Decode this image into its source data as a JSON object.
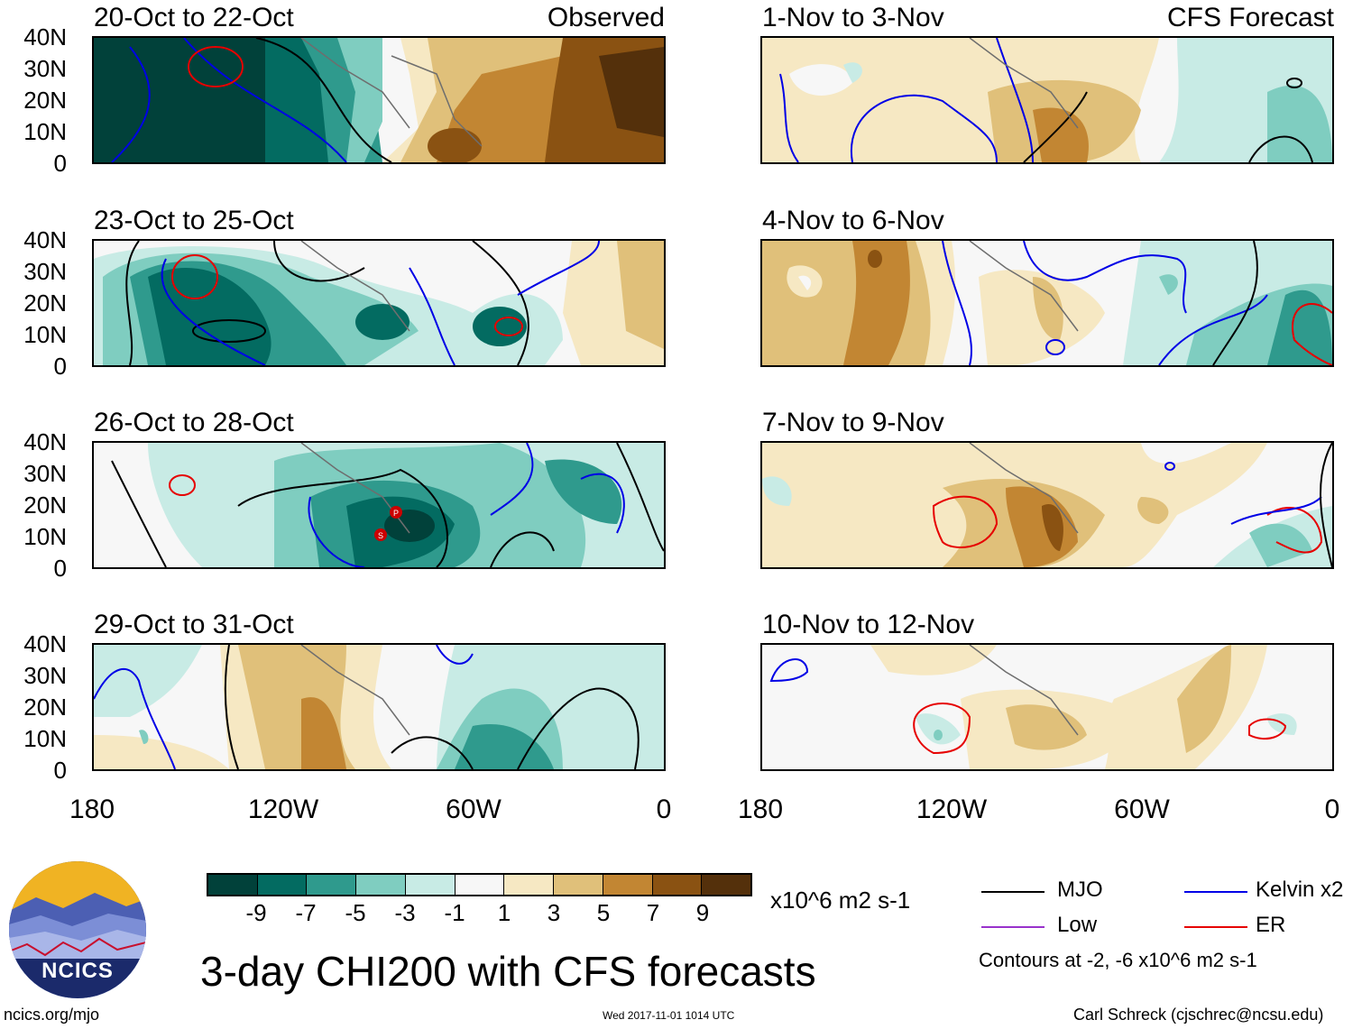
{
  "panels": [
    {
      "title": "20-Oct to 22-Oct",
      "tag": "Observed"
    },
    {
      "title": "23-Oct to 25-Oct",
      "tag": ""
    },
    {
      "title": "26-Oct to 28-Oct",
      "tag": ""
    },
    {
      "title": "29-Oct to 31-Oct",
      "tag": ""
    },
    {
      "title": "1-Nov to 3-Nov",
      "tag": "CFS Forecast"
    },
    {
      "title": "4-Nov to 6-Nov",
      "tag": ""
    },
    {
      "title": "7-Nov to 9-Nov",
      "tag": ""
    },
    {
      "title": "10-Nov to 12-Nov",
      "tag": ""
    }
  ],
  "axes": {
    "y_ticks": [
      "40N",
      "30N",
      "20N",
      "10N",
      "0"
    ],
    "x_ticks": [
      "180",
      "120W",
      "60W",
      "0"
    ]
  },
  "colorbar": {
    "labels": [
      "-9",
      "-7",
      "-5",
      "-3",
      "-1",
      "1",
      "3",
      "5",
      "7",
      "9"
    ],
    "units": "x10^6 m2 s-1",
    "colors": [
      "#01413a",
      "#036b61",
      "#2f9a8d",
      "#7fcdc0",
      "#c8ebe5",
      "#f7f7f7",
      "#f6e8c3",
      "#e0c07a",
      "#c28633",
      "#8a5212",
      "#54300b"
    ]
  },
  "legend": {
    "items": [
      {
        "label": "MJO",
        "color": "#000000"
      },
      {
        "label": "Kelvin x2",
        "color": "#0000e6"
      },
      {
        "label": "Low",
        "color": "#9932cc"
      },
      {
        "label": "ER",
        "color": "#e60000"
      }
    ],
    "contours_note": "Contours at -2, -6 x10^6 m2 s-1"
  },
  "storm_markers": [
    "P",
    "S"
  ],
  "footer": {
    "main_title": "3-day CHI200 with CFS forecasts",
    "logo_text": "NCICS",
    "website": "ncics.org/mjo",
    "timestamp": "Wed 2017-11-01 1014 UTC",
    "credit": "Carl Schreck (cjschrec@ncsu.edu)"
  }
}
